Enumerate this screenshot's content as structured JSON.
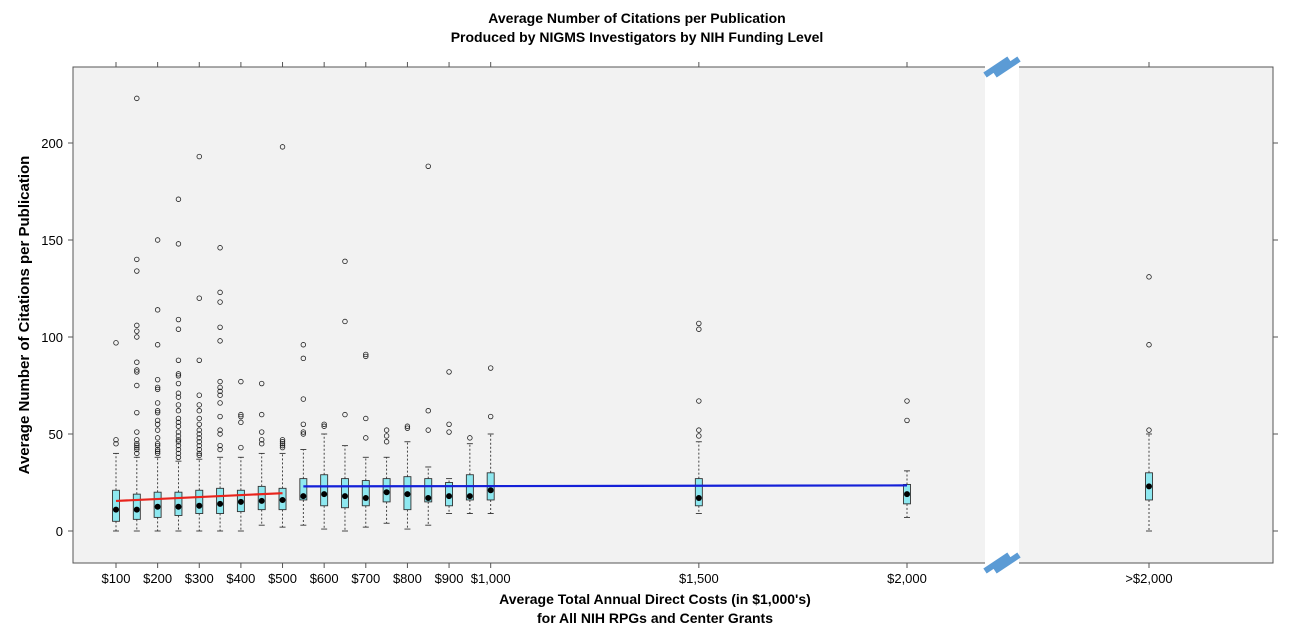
{
  "chart_data": {
    "type": "box",
    "title": "Average Number of Citations per Publication",
    "subtitle": "Produced by NIGMS Investigators by NIH Funding Level",
    "xlabel": "Average Total Annual Direct Costs (in $1,000's)",
    "xlabel2": "for All NIH RPGs and Center Grants",
    "ylabel": "Average Number of Citations per Publication",
    "ylim": [
      -15,
      240
    ],
    "yticks": [
      0,
      50,
      100,
      150,
      200
    ],
    "xticks": [
      {
        "x": 100,
        "label": "$100"
      },
      {
        "x": 200,
        "label": "$200"
      },
      {
        "x": 300,
        "label": "$300"
      },
      {
        "x": 400,
        "label": "$400"
      },
      {
        "x": 500,
        "label": "$500"
      },
      {
        "x": 600,
        "label": "$600"
      },
      {
        "x": 700,
        "label": "$700"
      },
      {
        "x": 800,
        "label": "$800"
      },
      {
        "x": 900,
        "label": "$900"
      },
      {
        "x": 1000,
        "label": "$1,000"
      },
      {
        "x": 1500,
        "label": "$1,500"
      },
      {
        "x": 2000,
        "label": "$2,000"
      },
      {
        "x": "over",
        "label": ">$2,000"
      }
    ],
    "axis_break": "between $2,000 and >$2,000",
    "colors": {
      "panel": "#f2f2f2",
      "box": "#8ee8f0",
      "low_trend": "#e8241c",
      "high_trend": "#1420d8",
      "break": "#5b9bd5"
    },
    "boxes": [
      {
        "x": 100,
        "q1": 5,
        "median": 11,
        "q3": 21,
        "whisker_low": 0,
        "whisker_high": 40,
        "outliers": [
          97,
          47,
          45
        ]
      },
      {
        "x": 150,
        "q1": 6,
        "median": 11,
        "q3": 19,
        "whisker_low": 0,
        "whisker_high": 38,
        "outliers": [
          223,
          140,
          134,
          106,
          103,
          100,
          87,
          83,
          82,
          75,
          61,
          51,
          47,
          45,
          44,
          43,
          42,
          40
        ]
      },
      {
        "x": 200,
        "q1": 7,
        "median": 12.5,
        "q3": 20,
        "whisker_low": 0,
        "whisker_high": 38,
        "outliers": [
          150,
          114,
          96,
          78,
          74,
          73,
          66,
          62,
          61,
          57,
          55,
          52,
          48,
          45,
          44,
          42,
          41,
          40
        ]
      },
      {
        "x": 250,
        "q1": 8,
        "median": 12.5,
        "q3": 20,
        "whisker_low": 0,
        "whisker_high": 36,
        "outliers": [
          171,
          148,
          109,
          104,
          88,
          81,
          80,
          76,
          71,
          69,
          65,
          62,
          58,
          56,
          54,
          51,
          49,
          47,
          46,
          44,
          42,
          40,
          38
        ]
      },
      {
        "x": 300,
        "q1": 9,
        "median": 13,
        "q3": 21,
        "whisker_low": 0,
        "whisker_high": 37,
        "outliers": [
          193,
          120,
          88,
          70,
          65,
          62,
          58,
          55,
          52,
          50,
          48,
          46,
          44,
          42,
          40,
          39
        ]
      },
      {
        "x": 350,
        "q1": 9,
        "median": 14,
        "q3": 22,
        "whisker_low": 0,
        "whisker_high": 38,
        "outliers": [
          146,
          123,
          118,
          105,
          98,
          77,
          74,
          72,
          70,
          66,
          59,
          52,
          50,
          44,
          42
        ]
      },
      {
        "x": 400,
        "q1": 10,
        "median": 15,
        "q3": 21,
        "whisker_low": 0,
        "whisker_high": 38,
        "outliers": [
          77,
          60,
          59,
          56,
          43
        ]
      },
      {
        "x": 450,
        "q1": 11,
        "median": 15.5,
        "q3": 23,
        "whisker_low": 3,
        "whisker_high": 40,
        "outliers": [
          76,
          60,
          51,
          47,
          45
        ]
      },
      {
        "x": 500,
        "q1": 11,
        "median": 16,
        "q3": 22,
        "whisker_low": 2,
        "whisker_high": 40,
        "outliers": [
          198,
          47,
          46,
          45,
          44,
          43
        ]
      },
      {
        "x": 550,
        "q1": 16,
        "median": 18,
        "q3": 27,
        "whisker_low": 3,
        "whisker_high": 42,
        "outliers": [
          96,
          89,
          68,
          55,
          51,
          50
        ]
      },
      {
        "x": 600,
        "q1": 13,
        "median": 19,
        "q3": 29,
        "whisker_low": 1,
        "whisker_high": 50,
        "outliers": [
          55,
          54
        ]
      },
      {
        "x": 650,
        "q1": 12,
        "median": 18,
        "q3": 27,
        "whisker_low": 0,
        "whisker_high": 44,
        "outliers": [
          139,
          108,
          60
        ]
      },
      {
        "x": 700,
        "q1": 13,
        "median": 17,
        "q3": 26,
        "whisker_low": 2,
        "whisker_high": 38,
        "outliers": [
          91,
          90,
          58,
          48
        ]
      },
      {
        "x": 750,
        "q1": 15,
        "median": 20,
        "q3": 27,
        "whisker_low": 4,
        "whisker_high": 38,
        "outliers": [
          52,
          49,
          46
        ]
      },
      {
        "x": 800,
        "q1": 11,
        "median": 19,
        "q3": 28,
        "whisker_low": 1,
        "whisker_high": 46,
        "outliers": [
          54,
          53
        ]
      },
      {
        "x": 850,
        "q1": 15,
        "median": 17,
        "q3": 27,
        "whisker_low": 3,
        "whisker_high": 33,
        "outliers": [
          188,
          62,
          52
        ]
      },
      {
        "x": 900,
        "q1": 13,
        "median": 18,
        "q3": 25,
        "whisker_low": 9,
        "whisker_high": 27,
        "outliers": [
          82,
          55,
          51
        ]
      },
      {
        "x": 950,
        "q1": 16,
        "median": 18,
        "q3": 29,
        "whisker_low": 9,
        "whisker_high": 45,
        "outliers": [
          48
        ]
      },
      {
        "x": 1000,
        "q1": 16,
        "median": 21,
        "q3": 30,
        "whisker_low": 9,
        "whisker_high": 50,
        "outliers": [
          84,
          59
        ]
      },
      {
        "x": 1500,
        "q1": 13,
        "median": 17,
        "q3": 27,
        "whisker_low": 9,
        "whisker_high": 46,
        "outliers": [
          107,
          104,
          67,
          52,
          49
        ]
      },
      {
        "x": 2000,
        "q1": 14,
        "median": 19,
        "q3": 24,
        "whisker_low": 7,
        "whisker_high": 31,
        "outliers": [
          67,
          57
        ]
      },
      {
        "x": "over",
        "q1": 16,
        "median": 23,
        "q3": 30,
        "whisker_low": 0,
        "whisker_high": 50,
        "outliers": [
          131,
          96,
          52
        ]
      }
    ],
    "trend_lines": [
      {
        "range": "low",
        "points": [
          [
            100,
            15.5
          ],
          [
            500,
            19.5
          ]
        ]
      },
      {
        "range": "high",
        "points": [
          [
            550,
            23
          ],
          [
            2000,
            23.5
          ]
        ]
      }
    ]
  }
}
